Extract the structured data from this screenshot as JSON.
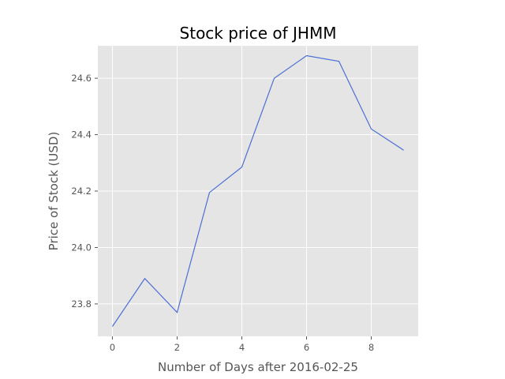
{
  "chart_data": {
    "type": "line",
    "title": "Stock price of JHMM",
    "xlabel": "Number of Days after 2016-02-25",
    "ylabel": "Price of Stock (USD)",
    "x": [
      0,
      1,
      2,
      3,
      4,
      5,
      6,
      7,
      8,
      9
    ],
    "series": [
      {
        "values": [
          23.72,
          23.89,
          23.77,
          24.195,
          24.285,
          24.6,
          24.68,
          24.66,
          24.42,
          24.345
        ]
      }
    ],
    "xlim": [
      -0.45,
      9.45
    ],
    "ylim": [
      23.685,
      24.715
    ],
    "xticks": [
      0,
      2,
      4,
      6,
      8
    ],
    "xtick_labels": [
      "0",
      "2",
      "4",
      "6",
      "8"
    ],
    "yticks": [
      23.8,
      24.0,
      24.2,
      24.4,
      24.6
    ],
    "ytick_labels": [
      "23.8",
      "24.0",
      "24.2",
      "24.4",
      "24.6"
    ],
    "grid": true,
    "colors": {
      "plot_background": "#e5e5e5",
      "grid": "#ffffff",
      "line": "#4c6fd6",
      "tick_text": "#555555",
      "title_text": "#000000"
    }
  }
}
